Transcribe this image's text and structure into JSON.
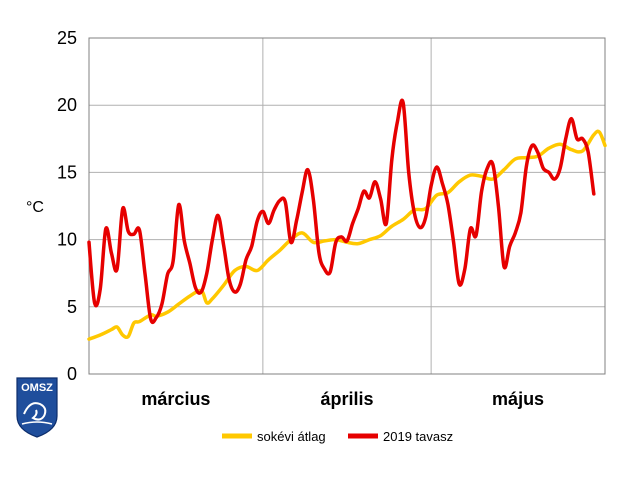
{
  "chart_data": {
    "type": "line",
    "ylabel": "°C",
    "ylim": [
      0,
      25
    ],
    "yticks": [
      0,
      5,
      10,
      15,
      20,
      25
    ],
    "xlim": [
      0,
      92
    ],
    "month_labels": [
      "március",
      "április",
      "május"
    ],
    "month_boundaries": [
      31,
      61
    ],
    "grid": true,
    "legend_position": "bottom",
    "series": [
      {
        "name": "sokévi átlag",
        "color": "#FFC800",
        "points": [
          [
            0,
            2.6
          ],
          [
            2,
            2.9
          ],
          [
            4,
            3.3
          ],
          [
            5,
            3.5
          ],
          [
            6,
            2.9
          ],
          [
            7,
            2.8
          ],
          [
            8,
            3.8
          ],
          [
            9,
            3.9
          ],
          [
            11,
            4.4
          ],
          [
            12,
            4.3
          ],
          [
            14,
            4.6
          ],
          [
            16,
            5.2
          ],
          [
            18,
            5.8
          ],
          [
            20,
            6.2
          ],
          [
            21,
            5.3
          ],
          [
            22,
            5.6
          ],
          [
            24,
            6.6
          ],
          [
            26,
            7.7
          ],
          [
            28,
            8.0
          ],
          [
            30,
            7.7
          ],
          [
            32,
            8.5
          ],
          [
            34,
            9.2
          ],
          [
            36,
            10.0
          ],
          [
            38,
            10.5
          ],
          [
            40,
            9.8
          ],
          [
            42,
            9.9
          ],
          [
            44,
            10.0
          ],
          [
            46,
            9.8
          ],
          [
            48,
            9.7
          ],
          [
            50,
            10.0
          ],
          [
            52,
            10.3
          ],
          [
            54,
            11.0
          ],
          [
            56,
            11.5
          ],
          [
            58,
            12.2
          ],
          [
            60,
            12.3
          ],
          [
            62,
            13.3
          ],
          [
            64,
            13.5
          ],
          [
            66,
            14.3
          ],
          [
            68,
            14.8
          ],
          [
            70,
            14.7
          ],
          [
            72,
            14.5
          ],
          [
            74,
            15.2
          ],
          [
            76,
            16.0
          ],
          [
            78,
            16.1
          ],
          [
            80,
            16.2
          ],
          [
            82,
            16.8
          ],
          [
            84,
            17.1
          ],
          [
            86,
            16.7
          ],
          [
            88,
            16.6
          ],
          [
            90,
            17.8
          ],
          [
            91,
            18.0
          ],
          [
            92,
            17.0
          ]
        ]
      },
      {
        "name": "2019 tavasz",
        "color": "#E60000",
        "points": [
          [
            0,
            9.8
          ],
          [
            1,
            5.3
          ],
          [
            2,
            6.3
          ],
          [
            3,
            10.8
          ],
          [
            4,
            9.0
          ],
          [
            5,
            7.8
          ],
          [
            6,
            12.3
          ],
          [
            7,
            10.6
          ],
          [
            8,
            10.4
          ],
          [
            9,
            10.7
          ],
          [
            10,
            7.4
          ],
          [
            11,
            4.1
          ],
          [
            12,
            4.2
          ],
          [
            13,
            5.2
          ],
          [
            14,
            7.4
          ],
          [
            15,
            8.4
          ],
          [
            16,
            12.6
          ],
          [
            17,
            9.9
          ],
          [
            18,
            8.2
          ],
          [
            19,
            6.4
          ],
          [
            20,
            6.1
          ],
          [
            21,
            7.5
          ],
          [
            22,
            10.0
          ],
          [
            23,
            11.8
          ],
          [
            24,
            9.6
          ],
          [
            25,
            7.0
          ],
          [
            26,
            6.1
          ],
          [
            27,
            6.7
          ],
          [
            28,
            8.5
          ],
          [
            29,
            9.5
          ],
          [
            30,
            11.4
          ],
          [
            31,
            12.1
          ],
          [
            32,
            11.2
          ],
          [
            33,
            12.2
          ],
          [
            34,
            12.9
          ],
          [
            35,
            12.8
          ],
          [
            36,
            9.8
          ],
          [
            37,
            11.4
          ],
          [
            38,
            13.5
          ],
          [
            39,
            15.2
          ],
          [
            40,
            13.0
          ],
          [
            41,
            9.0
          ],
          [
            42,
            7.8
          ],
          [
            43,
            7.6
          ],
          [
            44,
            9.8
          ],
          [
            45,
            10.2
          ],
          [
            46,
            9.9
          ],
          [
            47,
            11.2
          ],
          [
            48,
            12.3
          ],
          [
            49,
            13.6
          ],
          [
            50,
            13.1
          ],
          [
            51,
            14.3
          ],
          [
            52,
            13.0
          ],
          [
            53,
            11.2
          ],
          [
            54,
            16.0
          ],
          [
            55,
            18.8
          ],
          [
            56,
            20.2
          ],
          [
            57,
            15.0
          ],
          [
            58,
            12.0
          ],
          [
            59,
            10.9
          ],
          [
            60,
            11.6
          ],
          [
            61,
            14.0
          ],
          [
            62,
            15.4
          ],
          [
            63,
            14.2
          ],
          [
            64,
            12.6
          ],
          [
            65,
            9.8
          ],
          [
            66,
            6.7
          ],
          [
            67,
            7.8
          ],
          [
            68,
            10.8
          ],
          [
            69,
            10.3
          ],
          [
            70,
            13.6
          ],
          [
            71,
            15.3
          ],
          [
            72,
            15.6
          ],
          [
            73,
            12.5
          ],
          [
            74,
            8.0
          ],
          [
            75,
            9.5
          ],
          [
            76,
            10.5
          ],
          [
            77,
            12.0
          ],
          [
            78,
            15.5
          ],
          [
            79,
            17.0
          ],
          [
            80,
            16.5
          ],
          [
            81,
            15.3
          ],
          [
            82,
            15.0
          ],
          [
            83,
            14.5
          ],
          [
            84,
            15.3
          ],
          [
            85,
            17.5
          ],
          [
            86,
            19.0
          ],
          [
            87,
            17.5
          ],
          [
            88,
            17.5
          ],
          [
            89,
            16.5
          ],
          [
            90,
            13.4
          ]
        ]
      }
    ]
  },
  "logo": {
    "text": "OMSZ"
  }
}
